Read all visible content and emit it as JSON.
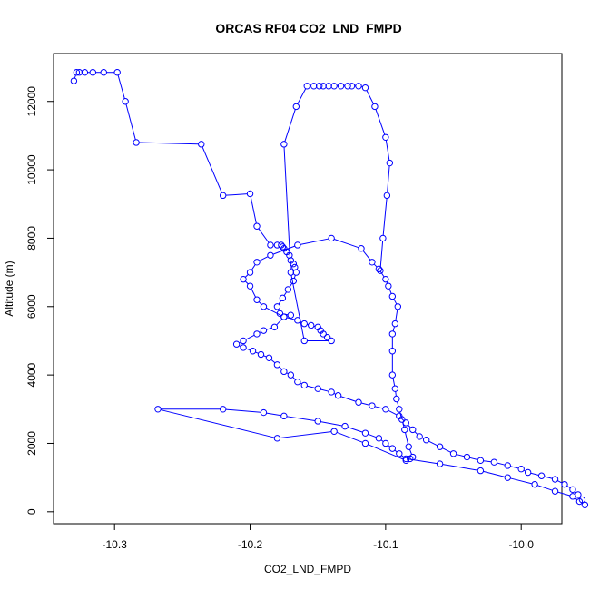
{
  "chart_data": {
    "type": "line",
    "title": "ORCAS RF04 CO2_LND_FMPD",
    "xlabel": "CO2_LND_FMPD",
    "ylabel": "Altitude (m)",
    "xlim": [
      -10.345,
      -9.97
    ],
    "ylim": [
      -350,
      13400
    ],
    "xticks": [
      -10.3,
      -10.2,
      -10.1,
      -10.0
    ],
    "xtick_labels": [
      "-10.3",
      "-10.2",
      "-10.1",
      "-10.0"
    ],
    "yticks": [
      0,
      2000,
      4000,
      6000,
      8000,
      10000,
      12000
    ],
    "ytick_labels": [
      "0",
      "2000",
      "4000",
      "6000",
      "8000",
      "10000",
      "12000"
    ],
    "grid": false,
    "legend": "none",
    "series_color": "#0000ff",
    "x": [
      -10.33,
      -10.328,
      -10.326,
      -10.322,
      -10.316,
      -10.308,
      -10.298,
      -10.292,
      -10.284,
      -10.236,
      -10.22,
      -10.2,
      -10.195,
      -10.185,
      -10.18,
      -10.177,
      -10.176,
      -10.175,
      -10.173,
      -10.171,
      -10.17,
      -10.168,
      -10.167,
      -10.166,
      -10.168,
      -10.172,
      -10.176,
      -10.18,
      -10.178,
      -10.17,
      -10.175,
      -10.182,
      -10.19,
      -10.195,
      -10.205,
      -10.21,
      -10.205,
      -10.198,
      -10.192,
      -10.186,
      -10.18,
      -10.175,
      -10.17,
      -10.165,
      -10.16,
      -10.15,
      -10.14,
      -10.135,
      -10.12,
      -10.11,
      -10.1,
      -10.09,
      -10.085,
      -10.08,
      -10.075,
      -10.07,
      -10.06,
      -10.05,
      -10.04,
      -10.03,
      -10.02,
      -10.01,
      -10.0,
      -9.995,
      -9.985,
      -9.975,
      -9.968,
      -9.962,
      -9.958,
      -9.955,
      -9.953,
      -9.957,
      -9.962,
      -9.975,
      -9.99,
      -10.01,
      -10.03,
      -10.06,
      -10.085,
      -10.09,
      -10.095,
      -10.1,
      -10.105,
      -10.115,
      -10.13,
      -10.15,
      -10.175,
      -10.19,
      -10.22,
      -10.268,
      -10.18,
      -10.138,
      -10.115,
      -10.085,
      -10.082,
      -10.08,
      -10.083,
      -10.086,
      -10.088,
      -10.09,
      -10.092,
      -10.093,
      -10.095,
      -10.095,
      -10.095,
      -10.093,
      -10.091,
      -10.095,
      -10.098,
      -10.1,
      -10.105,
      -10.11,
      -10.118,
      -10.14,
      -10.165,
      -10.185,
      -10.195,
      -10.2,
      -10.205,
      -10.2,
      -10.195,
      -10.19,
      -10.175,
      -10.165,
      -10.16,
      -10.155,
      -10.15,
      -10.148,
      -10.146,
      -10.143,
      -10.14,
      -10.16,
      -10.17,
      -10.175,
      -10.166,
      -10.158,
      -10.153,
      -10.149,
      -10.146,
      -10.142,
      -10.138,
      -10.133,
      -10.128,
      -10.125,
      -10.12,
      -10.115,
      -10.108,
      -10.1,
      -10.097,
      -10.099,
      -10.102,
      -10.104
    ],
    "y": [
      12600,
      12850,
      12850,
      12850,
      12850,
      12850,
      12850,
      12000,
      10800,
      10750,
      9250,
      9300,
      8350,
      7800,
      7800,
      7800,
      7750,
      7700,
      7600,
      7500,
      7350,
      7250,
      7150,
      7000,
      6750,
      6500,
      6250,
      6000,
      5800,
      5750,
      5700,
      5400,
      5300,
      5200,
      5000,
      4900,
      4800,
      4700,
      4600,
      4500,
      4300,
      4100,
      4000,
      3800,
      3700,
      3600,
      3500,
      3400,
      3200,
      3100,
      3000,
      2800,
      2600,
      2400,
      2200,
      2100,
      1900,
      1700,
      1600,
      1500,
      1450,
      1350,
      1250,
      1150,
      1050,
      950,
      800,
      650,
      500,
      350,
      200,
      300,
      450,
      600,
      800,
      1000,
      1200,
      1400,
      1550,
      1700,
      1850,
      2000,
      2150,
      2300,
      2500,
      2650,
      2800,
      2900,
      3000,
      3000,
      2150,
      2350,
      2000,
      1500,
      1550,
      1600,
      1900,
      2400,
      2700,
      3000,
      3300,
      3600,
      4000,
      4700,
      5200,
      5500,
      6000,
      6300,
      6600,
      6800,
      7100,
      7300,
      7700,
      8000,
      7800,
      7500,
      7300,
      7000,
      6800,
      6600,
      6200,
      6000,
      5700,
      5600,
      5500,
      5450,
      5400,
      5300,
      5200,
      5100,
      5000,
      5000,
      7000,
      10750,
      11850,
      12450,
      12450,
      12450,
      12450,
      12450,
      12450,
      12450,
      12450,
      12450,
      12450,
      12400,
      11850,
      10950,
      10200,
      9250,
      8000,
      7050
    ]
  }
}
